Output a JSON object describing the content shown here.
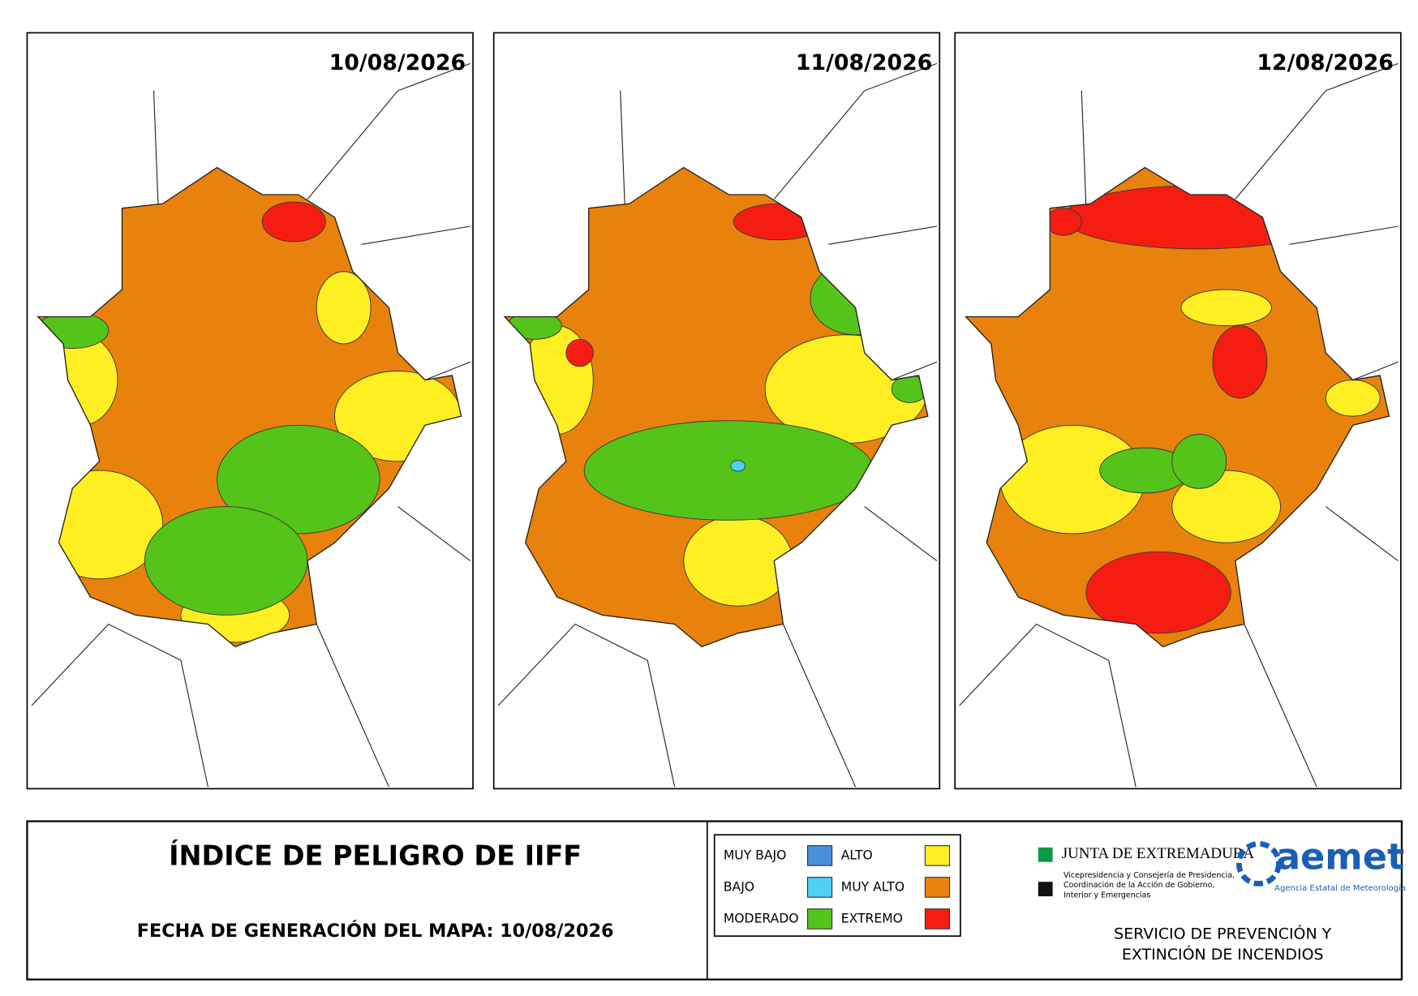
{
  "maps": [
    {
      "date": "10/08/2026"
    },
    {
      "date": "11/08/2026"
    },
    {
      "date": "12/08/2026"
    }
  ],
  "footer": {
    "title": "ÍNDICE DE PELIGRO DE IIFF",
    "generation": "FECHA DE GENERACIÓN DEL MAPA: 10/08/2026",
    "legend": [
      {
        "label": "MUY BAJO",
        "color": "#4a8fdb"
      },
      {
        "label": "BAJO",
        "color": "#4fd0f5"
      },
      {
        "label": "MODERADO",
        "color": "#55c41a"
      },
      {
        "label": "ALTO",
        "color": "#ffee22"
      },
      {
        "label": "MUY ALTO",
        "color": "#e8820c"
      },
      {
        "label": "EXTREMO",
        "color": "#f51d12"
      }
    ],
    "junta": {
      "name": "JUNTA DE EXTREMADURA",
      "lines": [
        "Vicepresidencia y Consejería de Presidencia,",
        "Coordinación de la Acción de Gobierno,",
        "Interior y Emergencias"
      ]
    },
    "aemet": {
      "name": "aemet",
      "subtitle": "Agencia Estatal de Meteorología"
    },
    "service": [
      "SERVICIO DE PREVENCIÓN Y",
      "EXTINCIÓN DE INCENDIOS"
    ]
  }
}
